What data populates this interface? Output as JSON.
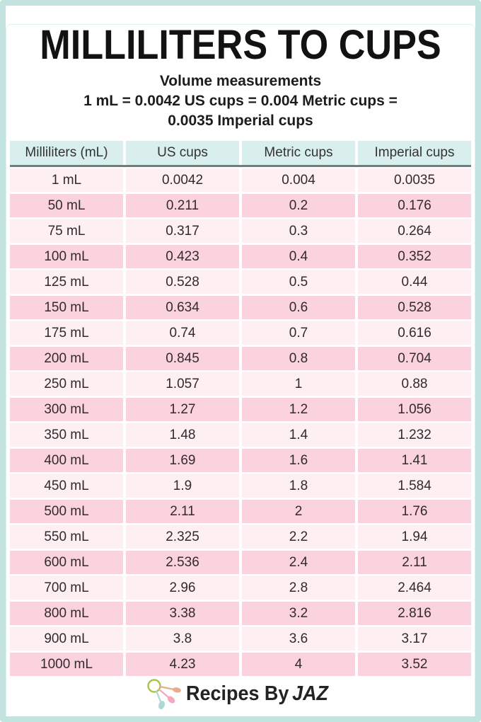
{
  "header": {
    "title": "MILLILITERS TO CUPS",
    "subtitle": "Volume measurements",
    "conversion_line1": "1 mL = 0.0042 US cups = 0.004 Metric cups =",
    "conversion_line2": "0.0035 Imperial cups"
  },
  "chart_data": {
    "type": "table",
    "title": "Milliliters to Cups conversion chart",
    "columns": [
      "Milliliters (mL)",
      "US cups",
      "Metric cups",
      "Imperial cups"
    ],
    "rows": [
      [
        "1 mL",
        "0.0042",
        "0.004",
        "0.0035"
      ],
      [
        "50 mL",
        "0.211",
        "0.2",
        "0.176"
      ],
      [
        "75 mL",
        "0.317",
        "0.3",
        "0.264"
      ],
      [
        "100 mL",
        "0.423",
        "0.4",
        "0.352"
      ],
      [
        "125 mL",
        "0.528",
        "0.5",
        "0.44"
      ],
      [
        "150 mL",
        "0.634",
        "0.6",
        "0.528"
      ],
      [
        "175 mL",
        "0.74",
        "0.7",
        "0.616"
      ],
      [
        "200 mL",
        "0.845",
        "0.8",
        "0.704"
      ],
      [
        "250 mL",
        "1.057",
        "1",
        "0.88"
      ],
      [
        "300 mL",
        "1.27",
        "1.2",
        "1.056"
      ],
      [
        "350 mL",
        "1.48",
        "1.4",
        "1.232"
      ],
      [
        "400 mL",
        "1.69",
        "1.6",
        "1.41"
      ],
      [
        "450 mL",
        "1.9",
        "1.8",
        "1.584"
      ],
      [
        "500 mL",
        "2.11",
        "2",
        "1.76"
      ],
      [
        "550 mL",
        "2.325",
        "2.2",
        "1.94"
      ],
      [
        "600 mL",
        "2.536",
        "2.4",
        "2.11"
      ],
      [
        "700 mL",
        "2.96",
        "2.8",
        "2.464"
      ],
      [
        "800 mL",
        "3.38",
        "3.2",
        "2.816"
      ],
      [
        "900 mL",
        "3.8",
        "3.6",
        "3.17"
      ],
      [
        "1000 mL",
        "4.23",
        "4",
        "3.52"
      ]
    ],
    "layout": {
      "row_stripe_light": "#fdeff2",
      "row_stripe_pink": "#fad3de",
      "header_bg": "#d9efee",
      "header_rule": "#6f7d80"
    }
  },
  "footer": {
    "brand_text": "Recipes By",
    "brand_name_italic": "JAZ"
  },
  "colors": {
    "frame_border": "#c3e3e1",
    "title_text": "#121212",
    "table_text": "#332a2d",
    "logo_ring": "#a6c648",
    "logo_spoon_salmon": "#e8ac8a",
    "logo_spoon_pink": "#f2a8bd",
    "logo_spoon_teal": "#b0d7d2"
  }
}
